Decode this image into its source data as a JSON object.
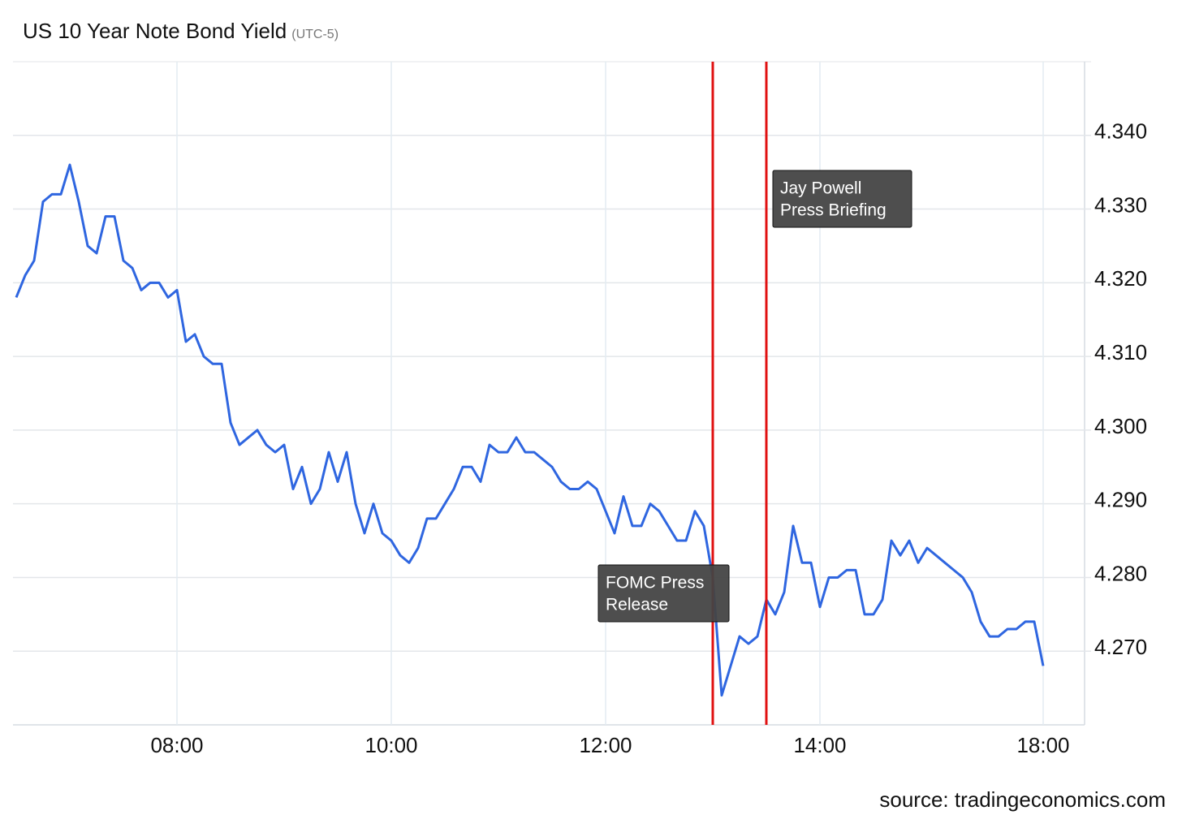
{
  "chart_data": {
    "type": "line",
    "title": "US 10 Year Note Bond Yield",
    "subtitle": "(UTC-5)",
    "source": "source: tradingeconomics.com",
    "categories": [
      null,
      null,
      null,
      null,
      null,
      null,
      null,
      null,
      null,
      null,
      null,
      null,
      null,
      null,
      null,
      null,
      null,
      null,
      "08:00",
      null,
      null,
      null,
      null,
      null,
      null,
      null,
      null,
      null,
      null,
      null,
      null,
      null,
      null,
      null,
      null,
      null,
      null,
      null,
      null,
      null,
      null,
      null,
      "10:00",
      null,
      null,
      null,
      null,
      null,
      null,
      null,
      null,
      null,
      null,
      null,
      null,
      null,
      null,
      null,
      null,
      null,
      null,
      null,
      null,
      null,
      null,
      null,
      "12:00",
      null,
      null,
      null,
      null,
      null,
      null,
      null,
      null,
      null,
      null,
      null,
      null,
      null,
      null,
      null,
      null,
      null,
      null,
      null,
      null,
      null,
      null,
      null,
      "14:00",
      null,
      null,
      null,
      null,
      null,
      null,
      null,
      null,
      null,
      null,
      null,
      null,
      null,
      null,
      null,
      null,
      null,
      null,
      null,
      null,
      null,
      null,
      null,
      null,
      "18:00"
    ],
    "values": [
      4.318,
      4.321,
      4.323,
      4.331,
      4.332,
      4.332,
      4.336,
      4.331,
      4.325,
      4.324,
      4.329,
      4.329,
      4.323,
      4.322,
      4.319,
      4.32,
      4.32,
      4.318,
      4.319,
      4.312,
      4.313,
      4.31,
      4.309,
      4.309,
      4.301,
      4.298,
      4.299,
      4.3,
      4.298,
      4.297,
      4.298,
      4.292,
      4.295,
      4.29,
      4.292,
      4.297,
      4.293,
      4.297,
      4.29,
      4.286,
      4.29,
      4.286,
      4.285,
      4.283,
      4.282,
      4.284,
      4.288,
      4.288,
      4.29,
      4.292,
      4.295,
      4.295,
      4.293,
      4.298,
      4.297,
      4.297,
      4.299,
      4.297,
      4.297,
      4.296,
      4.295,
      4.293,
      4.292,
      4.292,
      4.293,
      4.292,
      4.289,
      4.286,
      4.291,
      4.287,
      4.287,
      4.29,
      4.289,
      4.287,
      4.285,
      4.285,
      4.289,
      4.287,
      4.28,
      4.264,
      4.268,
      4.272,
      4.271,
      4.272,
      4.277,
      4.275,
      4.278,
      4.287,
      4.282,
      4.282,
      4.276,
      4.28,
      4.28,
      4.281,
      4.281,
      4.275,
      4.275,
      4.277,
      4.285,
      4.283,
      4.285,
      4.282,
      4.284,
      4.283,
      4.282,
      4.281,
      4.28,
      4.278,
      4.274,
      4.272,
      4.272,
      4.273,
      4.273,
      4.274,
      4.274,
      4.268
    ],
    "color": "#2f66e0",
    "ylim": [
      4.26,
      4.35
    ],
    "yticks": [
      {
        "value": 4.27,
        "label": "4.270"
      },
      {
        "value": 4.28,
        "label": "4.280"
      },
      {
        "value": 4.29,
        "label": "4.290"
      },
      {
        "value": 4.3,
        "label": "4.300"
      },
      {
        "value": 4.31,
        "label": "4.310"
      },
      {
        "value": 4.32,
        "label": "4.320"
      },
      {
        "value": 4.33,
        "label": "4.330"
      },
      {
        "value": 4.34,
        "label": "4.340"
      }
    ],
    "grid": true,
    "annotations": [
      {
        "lines": [
          "FOMC Press",
          "Release"
        ],
        "x": 78,
        "color": "#e01010"
      },
      {
        "lines": [
          "Jay Powell",
          "Press Briefing"
        ],
        "x": 84,
        "color": "#e01010"
      }
    ]
  }
}
